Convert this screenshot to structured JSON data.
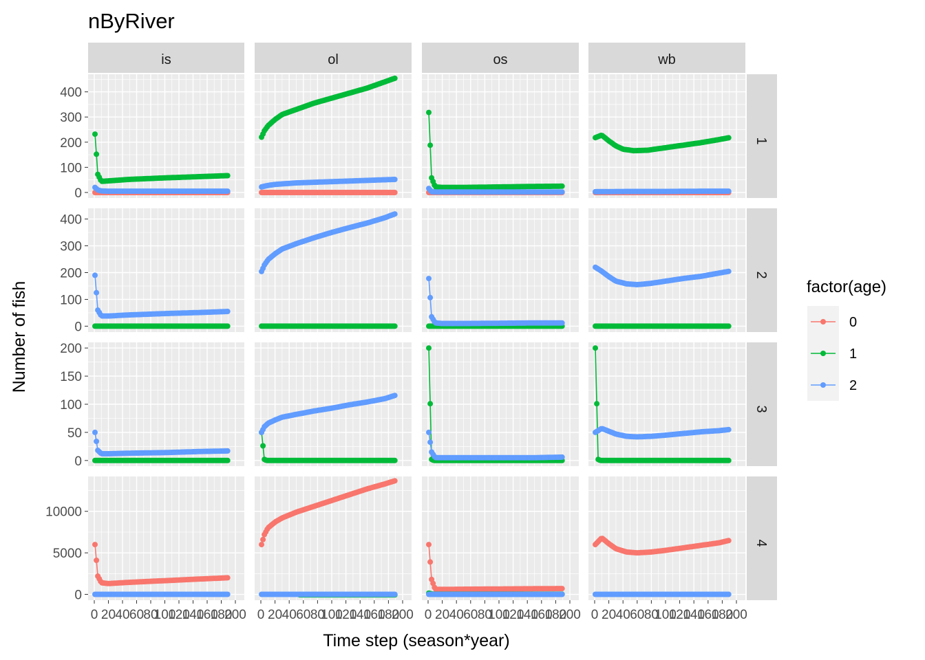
{
  "chart_data": {
    "type": "line",
    "title": "nByRiver",
    "xlabel": "Time step (season*year)",
    "ylabel": "Number of fish",
    "xlim": [
      0,
      200
    ],
    "x_ticks": [
      0,
      20,
      40,
      60,
      80,
      100,
      120,
      140,
      160,
      180,
      200
    ],
    "x_tick_labels": [
      "0",
      "20",
      "40",
      "60",
      "80",
      "100",
      "120",
      "140",
      "160",
      "180",
      "200"
    ],
    "x_obs": {
      "start": 1,
      "end": 190,
      "step": 2
    },
    "col_facets": [
      "is",
      "ol",
      "os",
      "wb"
    ],
    "row_facets": [
      "1",
      "2",
      "3",
      "4"
    ],
    "rows": [
      {
        "facet": "1",
        "ylim": [
          -22,
          470
        ],
        "y_ticks": [
          0,
          100,
          200,
          300,
          400
        ]
      },
      {
        "facet": "2",
        "ylim": [
          -22,
          440
        ],
        "y_ticks": [
          0,
          100,
          200,
          300,
          400
        ]
      },
      {
        "facet": "3",
        "ylim": [
          -10,
          210
        ],
        "y_ticks": [
          0,
          50,
          100,
          150,
          200
        ]
      },
      {
        "facet": "4",
        "ylim": [
          -700,
          14200
        ],
        "y_ticks": [
          0,
          5000,
          10000
        ]
      }
    ],
    "legend": {
      "title": "factor(age)",
      "position": "right",
      "entries": [
        {
          "label": "0",
          "color": "#F8766D"
        },
        {
          "label": "1",
          "color": "#00BA38"
        },
        {
          "label": "2",
          "color": "#619CFF"
        }
      ]
    },
    "series": [
      {
        "row": "1",
        "col": "is",
        "age": "0",
        "x": [
          1,
          190
        ],
        "y": [
          0,
          0
        ]
      },
      {
        "row": "1",
        "col": "is",
        "age": "1",
        "x": [
          1,
          5,
          10,
          20,
          50,
          100,
          150,
          190
        ],
        "y": [
          232,
          72,
          44,
          46,
          52,
          58,
          63,
          67
        ]
      },
      {
        "row": "1",
        "col": "is",
        "age": "2",
        "x": [
          1,
          5,
          10,
          20,
          50,
          100,
          150,
          190
        ],
        "y": [
          20,
          10,
          6,
          5,
          5,
          5,
          5,
          5
        ]
      },
      {
        "row": "1",
        "col": "ol",
        "age": "0",
        "x": [
          1,
          190
        ],
        "y": [
          0,
          0
        ]
      },
      {
        "row": "1",
        "col": "ol",
        "age": "1",
        "x": [
          1,
          5,
          10,
          20,
          30,
          50,
          75,
          100,
          125,
          150,
          175,
          190
        ],
        "y": [
          220,
          245,
          265,
          290,
          310,
          330,
          355,
          375,
          395,
          415,
          440,
          455
        ]
      },
      {
        "row": "1",
        "col": "ol",
        "age": "2",
        "x": [
          1,
          10,
          20,
          50,
          100,
          150,
          190
        ],
        "y": [
          22,
          28,
          32,
          38,
          43,
          48,
          52
        ]
      },
      {
        "row": "1",
        "col": "os",
        "age": "0",
        "x": [
          1,
          190
        ],
        "y": [
          0,
          0
        ]
      },
      {
        "row": "1",
        "col": "os",
        "age": "1",
        "x": [
          1,
          5,
          10,
          20,
          50,
          100,
          150,
          190
        ],
        "y": [
          318,
          58,
          22,
          20,
          20,
          22,
          24,
          25
        ]
      },
      {
        "row": "1",
        "col": "os",
        "age": "2",
        "x": [
          1,
          5,
          10,
          20,
          50,
          100,
          150,
          190
        ],
        "y": [
          16,
          3,
          2,
          2,
          2,
          2,
          2,
          2
        ]
      },
      {
        "row": "1",
        "col": "wb",
        "age": "0",
        "x": [
          1,
          190
        ],
        "y": [
          0,
          0
        ]
      },
      {
        "row": "1",
        "col": "wb",
        "age": "1",
        "x": [
          1,
          10,
          20,
          30,
          40,
          55,
          75,
          100,
          125,
          150,
          175,
          190
        ],
        "y": [
          218,
          228,
          205,
          185,
          172,
          166,
          168,
          178,
          188,
          198,
          210,
          218
        ]
      },
      {
        "row": "1",
        "col": "wb",
        "age": "2",
        "x": [
          1,
          50,
          100,
          150,
          190
        ],
        "y": [
          3,
          4,
          4,
          5,
          5
        ]
      },
      {
        "row": "2",
        "col": "is",
        "age": "1",
        "x": [
          1,
          190
        ],
        "y": [
          0,
          0
        ]
      },
      {
        "row": "2",
        "col": "is",
        "age": "2",
        "x": [
          1,
          5,
          10,
          20,
          50,
          100,
          150,
          190
        ],
        "y": [
          190,
          60,
          38,
          38,
          42,
          47,
          51,
          55
        ]
      },
      {
        "row": "2",
        "col": "ol",
        "age": "1",
        "x": [
          1,
          190
        ],
        "y": [
          0,
          0
        ]
      },
      {
        "row": "2",
        "col": "ol",
        "age": "2",
        "x": [
          1,
          5,
          10,
          20,
          30,
          50,
          75,
          100,
          125,
          150,
          175,
          190
        ],
        "y": [
          204,
          228,
          248,
          270,
          288,
          308,
          330,
          350,
          368,
          385,
          405,
          420
        ]
      },
      {
        "row": "2",
        "col": "os",
        "age": "1",
        "x": [
          1,
          190
        ],
        "y": [
          0,
          0
        ]
      },
      {
        "row": "2",
        "col": "os",
        "age": "2",
        "x": [
          1,
          5,
          10,
          20,
          50,
          100,
          150,
          190
        ],
        "y": [
          178,
          35,
          12,
          10,
          10,
          11,
          12,
          12
        ]
      },
      {
        "row": "2",
        "col": "wb",
        "age": "1",
        "x": [
          1,
          190
        ],
        "y": [
          0,
          0
        ]
      },
      {
        "row": "2",
        "col": "wb",
        "age": "2",
        "x": [
          1,
          10,
          20,
          30,
          45,
          60,
          80,
          100,
          125,
          150,
          175,
          190
        ],
        "y": [
          220,
          205,
          185,
          168,
          158,
          155,
          160,
          168,
          178,
          186,
          198,
          205
        ]
      },
      {
        "row": "3",
        "col": "is",
        "age": "1",
        "x": [
          1,
          5,
          8,
          190
        ],
        "y": [
          0,
          0,
          0,
          0
        ]
      },
      {
        "row": "3",
        "col": "is",
        "age": "2",
        "x": [
          1,
          5,
          10,
          20,
          50,
          100,
          150,
          190
        ],
        "y": [
          50,
          18,
          12,
          12,
          13,
          14,
          16,
          17
        ]
      },
      {
        "row": "3",
        "col": "ol",
        "age": "1",
        "x": [
          1,
          5,
          8,
          190
        ],
        "y": [
          50,
          2,
          0,
          0
        ]
      },
      {
        "row": "3",
        "col": "ol",
        "age": "2",
        "x": [
          1,
          5,
          10,
          20,
          30,
          50,
          75,
          100,
          125,
          150,
          175,
          190
        ],
        "y": [
          50,
          60,
          66,
          72,
          77,
          82,
          88,
          93,
          99,
          104,
          110,
          116
        ]
      },
      {
        "row": "3",
        "col": "os",
        "age": "1",
        "x": [
          1,
          5,
          8,
          190
        ],
        "y": [
          200,
          2,
          0,
          0
        ]
      },
      {
        "row": "3",
        "col": "os",
        "age": "2",
        "x": [
          1,
          5,
          10,
          20,
          50,
          100,
          150,
          190
        ],
        "y": [
          50,
          15,
          5,
          5,
          5,
          5,
          5,
          6
        ]
      },
      {
        "row": "3",
        "col": "wb",
        "age": "1",
        "x": [
          1,
          5,
          8,
          190
        ],
        "y": [
          200,
          2,
          0,
          0
        ]
      },
      {
        "row": "3",
        "col": "wb",
        "age": "2",
        "x": [
          1,
          10,
          20,
          30,
          45,
          60,
          80,
          100,
          125,
          150,
          175,
          190
        ],
        "y": [
          50,
          57,
          52,
          47,
          43,
          42,
          43,
          45,
          48,
          51,
          53,
          55
        ]
      },
      {
        "row": "4",
        "col": "is",
        "age": "0",
        "x": [
          1,
          5,
          10,
          20,
          50,
          100,
          150,
          190
        ],
        "y": [
          6000,
          2200,
          1400,
          1300,
          1450,
          1650,
          1850,
          2000
        ]
      },
      {
        "row": "4",
        "col": "is",
        "age": "2",
        "x": [
          1,
          190
        ],
        "y": [
          0,
          0
        ]
      },
      {
        "row": "4",
        "col": "ol",
        "age": "0",
        "x": [
          1,
          5,
          10,
          20,
          30,
          50,
          75,
          100,
          125,
          150,
          175,
          190
        ],
        "y": [
          6000,
          7200,
          8000,
          8700,
          9200,
          9900,
          10600,
          11300,
          12000,
          12700,
          13300,
          13700
        ]
      },
      {
        "row": "4",
        "col": "ol",
        "age": "1",
        "x": [
          55,
          190
        ],
        "y": [
          -60,
          -60
        ]
      },
      {
        "row": "4",
        "col": "ol",
        "age": "2",
        "x": [
          1,
          190
        ],
        "y": [
          0,
          0
        ]
      },
      {
        "row": "4",
        "col": "os",
        "age": "0",
        "x": [
          1,
          5,
          10,
          20,
          50,
          100,
          150,
          190
        ],
        "y": [
          6000,
          1800,
          600,
          600,
          620,
          650,
          680,
          700
        ]
      },
      {
        "row": "4",
        "col": "os",
        "age": "1",
        "x": [
          1,
          5,
          10,
          190
        ],
        "y": [
          150,
          50,
          20,
          20
        ]
      },
      {
        "row": "4",
        "col": "os",
        "age": "2",
        "x": [
          1,
          190
        ],
        "y": [
          0,
          0
        ]
      },
      {
        "row": "4",
        "col": "wb",
        "age": "0",
        "x": [
          1,
          10,
          20,
          30,
          45,
          60,
          80,
          100,
          125,
          150,
          175,
          190
        ],
        "y": [
          6000,
          6800,
          6100,
          5500,
          5100,
          5000,
          5100,
          5300,
          5600,
          5900,
          6200,
          6500
        ]
      },
      {
        "row": "4",
        "col": "wb",
        "age": "2",
        "x": [
          1,
          190
        ],
        "y": [
          0,
          0
        ]
      }
    ]
  }
}
